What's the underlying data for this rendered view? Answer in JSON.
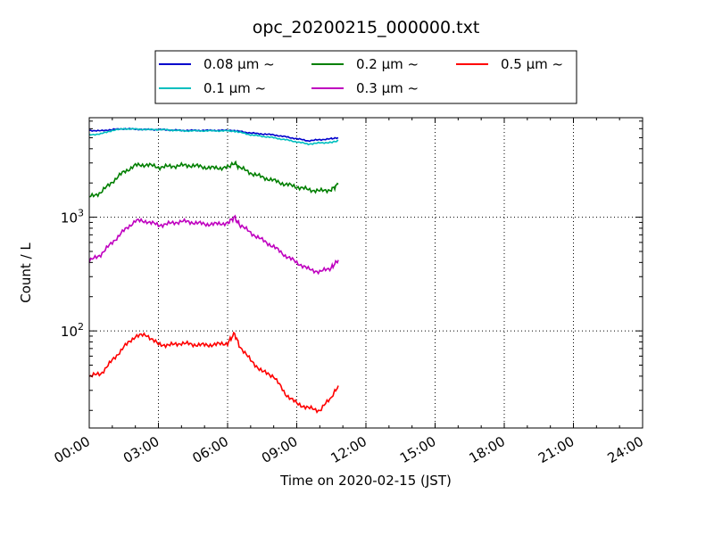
{
  "chart_data": {
    "type": "line",
    "title": "opc_20200215_000000.txt",
    "xlabel": "Time on 2020-02-15 (JST)",
    "ylabel": "Count / L",
    "x_unit": "hours",
    "xlim": [
      0,
      24
    ],
    "ylim": [
      14,
      7500
    ],
    "yscale": "log",
    "x_ticks": [
      0,
      3,
      6,
      9,
      12,
      15,
      18,
      21,
      24
    ],
    "x_tick_labels": [
      "00:00",
      "03:00",
      "06:00",
      "09:00",
      "12:00",
      "15:00",
      "18:00",
      "21:00",
      "24:00"
    ],
    "y_major_ticks": [
      100,
      1000
    ],
    "y_major_tick_labels": [
      "10",
      "10"
    ],
    "y_major_tick_exponents": [
      "2",
      "3"
    ],
    "grid": true,
    "legend_position": "top",
    "legend_columns": 3,
    "x": [
      0,
      0.5,
      1,
      1.5,
      2,
      2.5,
      3,
      3.5,
      4,
      4.5,
      5,
      5.5,
      6,
      6.3,
      6.5,
      7,
      7.5,
      8,
      8.5,
      9,
      9.5,
      10,
      10.5,
      10.8
    ],
    "series": [
      {
        "name": "0.08 μm ~",
        "color": "#0000cc",
        "values": [
          5800,
          5750,
          5900,
          6000,
          5950,
          5900,
          5900,
          5850,
          5800,
          5800,
          5800,
          5800,
          5800,
          5750,
          5700,
          5500,
          5400,
          5300,
          5100,
          4900,
          4700,
          4800,
          4900,
          5000
        ]
      },
      {
        "name": "0.1 μm ~",
        "color": "#00bfbf",
        "values": [
          5300,
          5400,
          5800,
          6000,
          5950,
          5900,
          5900,
          5850,
          5750,
          5750,
          5750,
          5750,
          5750,
          5700,
          5600,
          5300,
          5150,
          5000,
          4800,
          4600,
          4400,
          4500,
          4550,
          4700
        ]
      },
      {
        "name": "0.2 μm ~",
        "color": "#007f00",
        "values": [
          1500,
          1650,
          2050,
          2500,
          2850,
          2900,
          2750,
          2800,
          2850,
          2850,
          2750,
          2700,
          2750,
          3000,
          2750,
          2450,
          2250,
          2100,
          1950,
          1850,
          1750,
          1700,
          1750,
          1950
        ]
      },
      {
        "name": "0.3 μm ~",
        "color": "#bf00bf",
        "values": [
          410,
          470,
          600,
          760,
          930,
          920,
          850,
          880,
          920,
          900,
          870,
          870,
          890,
          1000,
          870,
          730,
          630,
          550,
          460,
          400,
          350,
          330,
          360,
          420
        ]
      },
      {
        "name": "0.5 μm ~",
        "color": "#ff0000",
        "values": [
          40,
          42,
          55,
          72,
          90,
          92,
          76,
          75,
          78,
          76,
          75,
          76,
          78,
          95,
          75,
          55,
          44,
          40,
          28,
          23,
          21,
          20,
          26,
          33
        ]
      }
    ]
  }
}
